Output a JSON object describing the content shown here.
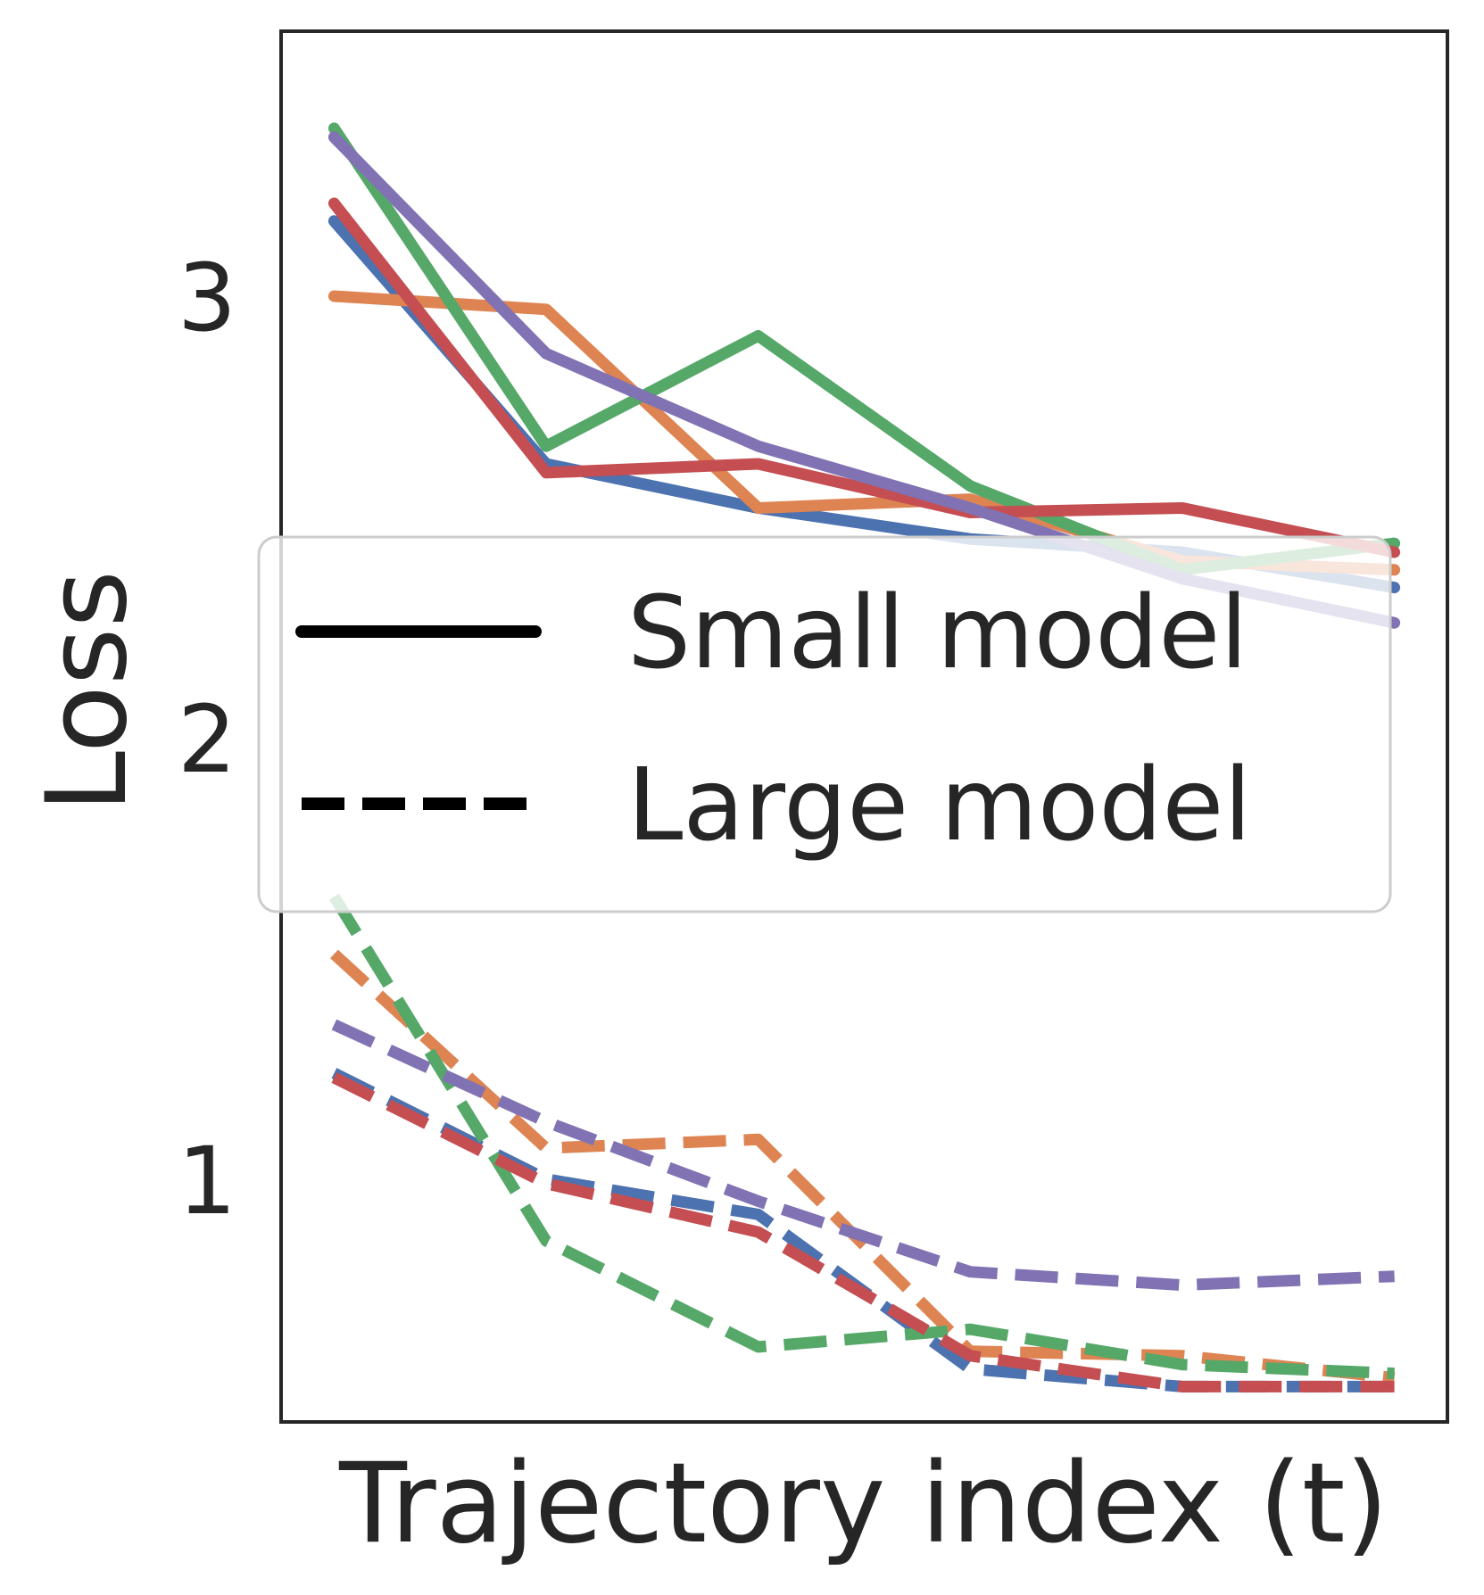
{
  "chart_data": {
    "type": "line",
    "title": "",
    "xlabel": "Trajectory index (t)",
    "ylabel": "Loss",
    "x": [
      0,
      1,
      2,
      3,
      4,
      5
    ],
    "xlim": [
      -0.25,
      5.25
    ],
    "ylim": [
      0.45,
      3.6
    ],
    "yticks": [
      1,
      2,
      3
    ],
    "ytick_labels": [
      "1",
      "2",
      "3"
    ],
    "xtick_labels": [],
    "grid": false,
    "colors": [
      "#4c72b0",
      "#dd8452",
      "#55a868",
      "#c44e52",
      "#8172b3"
    ],
    "series": [
      {
        "name": "blue-small",
        "model": "Small model",
        "style": "solid",
        "color": "#4c72b0",
        "values": [
          3.17,
          2.62,
          2.52,
          2.45,
          2.42,
          2.34
        ]
      },
      {
        "name": "orange-small",
        "model": "Small model",
        "style": "solid",
        "color": "#dd8452",
        "values": [
          3.0,
          2.97,
          2.52,
          2.54,
          2.4,
          2.38
        ]
      },
      {
        "name": "green-small",
        "model": "Small model",
        "style": "solid",
        "color": "#55a868",
        "values": [
          3.38,
          2.66,
          2.91,
          2.57,
          2.38,
          2.44
        ]
      },
      {
        "name": "red-small",
        "model": "Small model",
        "style": "solid",
        "color": "#c44e52",
        "values": [
          3.21,
          2.6,
          2.62,
          2.51,
          2.52,
          2.42
        ]
      },
      {
        "name": "purple-small",
        "model": "Small model",
        "style": "solid",
        "color": "#8172b3",
        "values": [
          3.36,
          2.87,
          2.66,
          2.52,
          2.36,
          2.26
        ]
      },
      {
        "name": "blue-large",
        "model": "Large model",
        "style": "dashed",
        "color": "#4c72b0",
        "values": [
          1.24,
          1.0,
          0.92,
          0.57,
          0.53,
          0.53
        ]
      },
      {
        "name": "orange-large",
        "model": "Large model",
        "style": "dashed",
        "color": "#dd8452",
        "values": [
          1.51,
          1.07,
          1.09,
          0.61,
          0.6,
          0.55
        ]
      },
      {
        "name": "green-large",
        "model": "Large model",
        "style": "dashed",
        "color": "#55a868",
        "values": [
          1.64,
          0.86,
          0.62,
          0.66,
          0.58,
          0.56
        ]
      },
      {
        "name": "red-large",
        "model": "Large model",
        "style": "dashed",
        "color": "#c44e52",
        "values": [
          1.23,
          0.99,
          0.88,
          0.6,
          0.53,
          0.53
        ]
      },
      {
        "name": "purple-large",
        "model": "Large model",
        "style": "dashed",
        "color": "#8172b3",
        "values": [
          1.35,
          1.13,
          0.95,
          0.79,
          0.76,
          0.78
        ]
      }
    ],
    "legend": {
      "position": "center",
      "entries": [
        {
          "label": "Small model",
          "style": "solid",
          "color": "#000000"
        },
        {
          "label": "Large model",
          "style": "dashed",
          "color": "#000000"
        }
      ]
    }
  }
}
